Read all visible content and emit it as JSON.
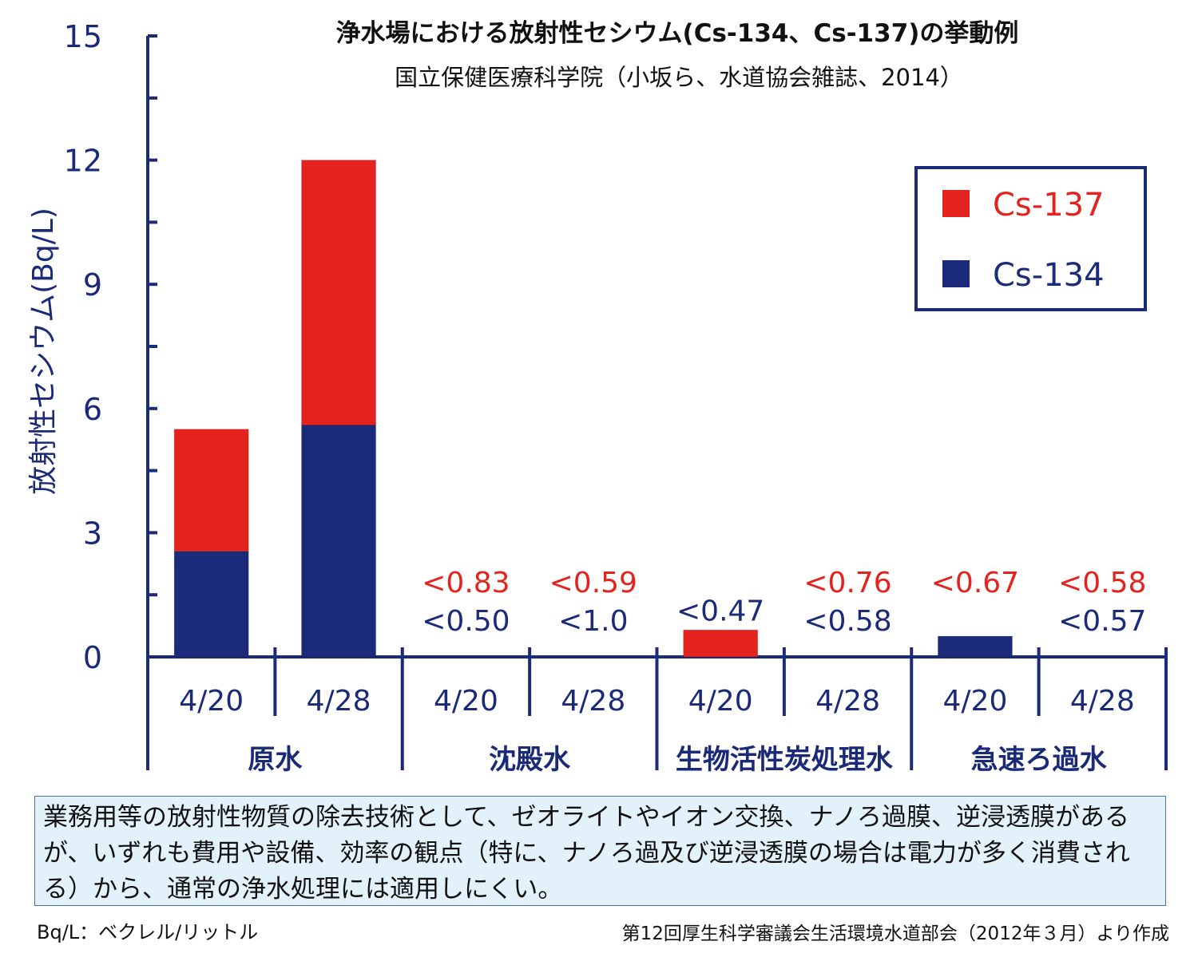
{
  "chart_data": {
    "type": "bar",
    "stacked": true,
    "title": "浄水場における放射性セシウム(Cs-134、Cs-137)の挙動例",
    "subtitle": "国立保健医療科学院（小坂ら、水道協会雑誌、2014）",
    "ylabel": "放射性セシウム(Bq/L)",
    "ylim": [
      0,
      15
    ],
    "yticks": [
      "0",
      "3",
      "6",
      "9",
      "12",
      "15"
    ],
    "groups": [
      "原水",
      "沈殿水",
      "生物活性炭処理水",
      "急速ろ過水"
    ],
    "categories": [
      "4/20",
      "4/28",
      "4/20",
      "4/28",
      "4/20",
      "4/28",
      "4/20",
      "4/28"
    ],
    "series": [
      {
        "name": "Cs-134",
        "color": "#1c2a7a",
        "values": [
          2.55,
          5.6,
          0,
          0,
          0,
          0,
          0.5,
          0
        ]
      },
      {
        "name": "Cs-137",
        "color": "#e5231e",
        "values": [
          2.95,
          6.4,
          0,
          0,
          0.65,
          0,
          0,
          0
        ]
      }
    ],
    "labels_cs137": [
      "",
      "",
      "<0.83",
      "<0.59",
      "",
      "<0.76",
      "<0.67",
      "<0.58"
    ],
    "labels_cs134": [
      "",
      "",
      "<0.50",
      "<1.0",
      "<0.47",
      "<0.58",
      "",
      "<0.57"
    ],
    "legend": {
      "placement": "top-right",
      "entries": [
        "Cs-137",
        "Cs-134"
      ]
    },
    "grid": false
  },
  "note": "業務用等の放射性物質の除去技術として、ゼオライトやイオン交換、ナノろ過膜、逆浸透膜があるが、いずれも費用や設備、効率の観点（特に、ナノろ過及び逆浸透膜の場合は電力が多く消費される）から、通常の浄水処理には適用しにくい。",
  "unit_note": "Bq/L：ベクレル/リットル",
  "source": "第12回厚生科学審議会生活環境水道部会（2012年３月）より作成"
}
